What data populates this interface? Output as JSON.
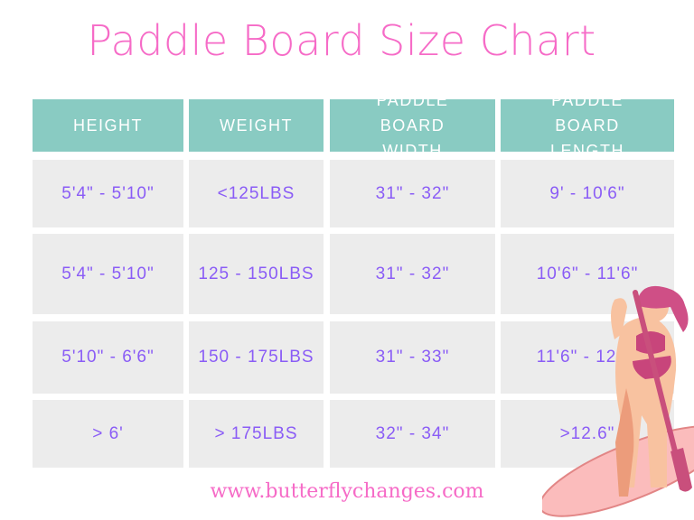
{
  "title": "Paddle Board Size Chart",
  "table": {
    "headers": [
      "HEIGHT",
      "WEIGHT",
      "PADDLE BOARD WIDTH",
      "PADDLE BOARD LENGTH"
    ],
    "rows": [
      [
        "5'4\" - 5'10\"",
        "<125LBS",
        "31\" - 32\"",
        "9' - 10'6\""
      ],
      [
        "5'4\" - 5'10\"",
        "125 - 150LBS",
        "31\" - 32\"",
        "10'6\" - 11'6\""
      ],
      [
        "5'10\" - 6'6\"",
        "150 - 175LBS",
        "31\" - 33\"",
        "11'6\" - 12'6\""
      ],
      [
        "> 6'",
        "> 175LBS",
        "32\" - 34\"",
        ">12.6\""
      ]
    ]
  },
  "footer": "www.butterflychanges.com",
  "colors": {
    "title": "#f66bc7",
    "header_bg": "#89cbc2",
    "cell_bg": "#ececec",
    "cell_text": "#8a5cf6"
  },
  "illustration": "woman-on-paddle-board"
}
